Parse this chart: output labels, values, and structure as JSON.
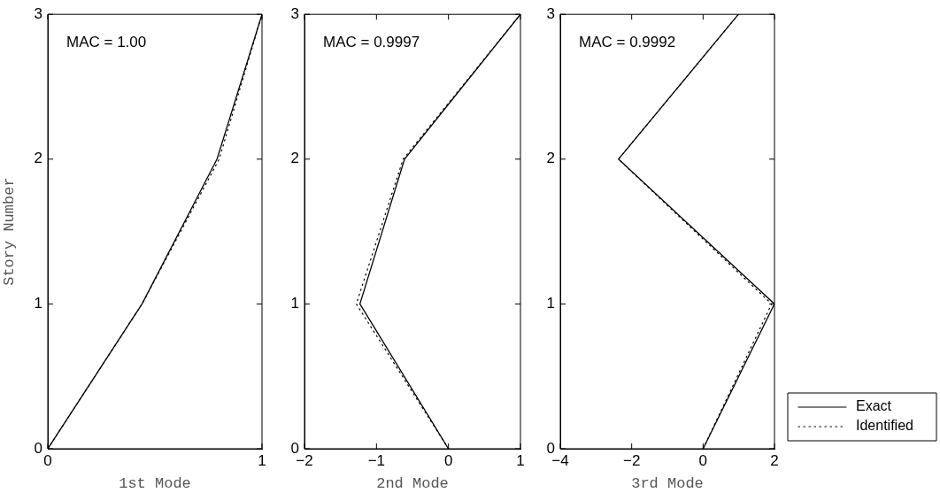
{
  "chart_data": [
    {
      "type": "line",
      "xlabel": "1st Mode",
      "ylabel": "Story Number",
      "annotations": [
        "MAC = 1.00"
      ],
      "xlim": [
        0,
        1
      ],
      "xticks": [
        0,
        1
      ],
      "ylim": [
        0,
        3
      ],
      "yticks": [
        0,
        1,
        2,
        3
      ],
      "grid": false,
      "legend": false,
      "marker": "none",
      "series": [
        {
          "color": "#000000",
          "line_style": "solid",
          "x": [
            0,
            0.44,
            0.79,
            1
          ],
          "values": [
            0,
            1,
            2,
            3
          ]
        },
        {
          "color": "#000000",
          "line_style": "dotted",
          "x": [
            0,
            0.44,
            0.8,
            1
          ],
          "values": [
            0,
            1,
            2,
            3
          ]
        }
      ]
    },
    {
      "type": "line",
      "xlabel": "2nd Mode",
      "annotations": [
        "MAC = 0.9997"
      ],
      "xlim": [
        -2,
        1
      ],
      "xticks": [
        -2,
        -1,
        0,
        1
      ],
      "ylim": [
        0,
        3
      ],
      "yticks": [
        0,
        1,
        2,
        3
      ],
      "grid": false,
      "legend": false,
      "marker": "none",
      "series": [
        {
          "color": "#000000",
          "line_style": "solid",
          "x": [
            0,
            -1.23,
            -0.61,
            1
          ],
          "values": [
            0,
            1,
            2,
            3
          ]
        },
        {
          "color": "#000000",
          "line_style": "dotted",
          "x": [
            0,
            -1.28,
            -0.63,
            1
          ],
          "values": [
            0,
            1,
            2,
            3
          ]
        }
      ]
    },
    {
      "type": "line",
      "xlabel": "3rd Mode",
      "annotations": [
        "MAC = 0.9992"
      ],
      "xlim": [
        -4,
        2
      ],
      "xticks": [
        -4,
        -2,
        0,
        2
      ],
      "ylim": [
        0,
        3
      ],
      "yticks": [
        0,
        1,
        2,
        3
      ],
      "grid": false,
      "legend": "bottom right",
      "marker": "none",
      "series": [
        {
          "name": "Exact",
          "color": "#000000",
          "line_style": "solid",
          "x": [
            0,
            2,
            -2.37,
            0.99
          ],
          "values": [
            0,
            1,
            2,
            3
          ]
        },
        {
          "name": "Identified",
          "color": "#000000",
          "line_style": "dotted",
          "x": [
            0,
            1.92,
            -2.37,
            0.99
          ],
          "values": [
            0,
            1,
            2,
            3
          ]
        }
      ]
    }
  ]
}
